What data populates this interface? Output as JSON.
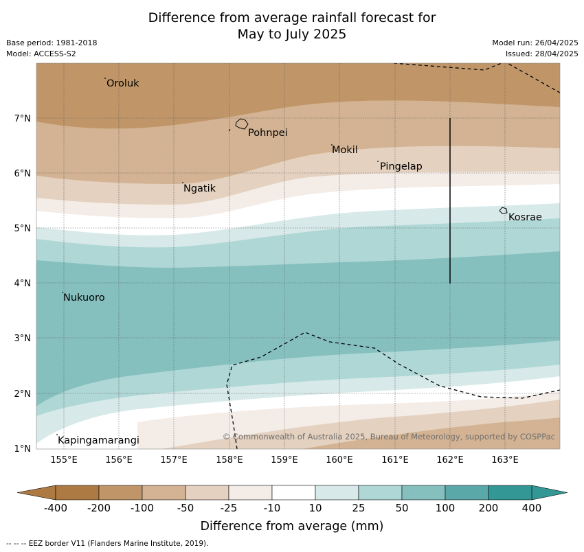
{
  "title": {
    "line1": "Difference from average rainfall forecast for",
    "line2": "May to July 2025"
  },
  "meta": {
    "base_period": "Base period: 1981-2018",
    "model": "Model: ACCESS-S2",
    "model_run": "Model run: 26/04/2025",
    "issued": "Issued: 28/04/2025"
  },
  "map": {
    "lat_ticks": [
      "7°N",
      "6°N",
      "5°N",
      "4°N",
      "3°N",
      "2°N",
      "1°N"
    ],
    "lon_ticks": [
      "155°E",
      "156°E",
      "157°E",
      "158°E",
      "159°E",
      "160°E",
      "161°E",
      "162°E",
      "163°E"
    ],
    "places": [
      "Oroluk",
      "Pohnpei",
      "Mokil",
      "Pingelap",
      "Ngatik",
      "Kosrae",
      "Nukuoro",
      "Kapingamarangi"
    ],
    "copyright": "© Commonwealth of Australia 2025, Bureau of Meteorology, supported by COSPPac"
  },
  "colorbar": {
    "ticks": [
      "-400",
      "-200",
      "-100",
      "-50",
      "-25",
      "-10",
      "10",
      "25",
      "50",
      "100",
      "200",
      "400"
    ],
    "colors": [
      "#ad7a43",
      "#c09669",
      "#d3b393",
      "#e4d1bf",
      "#f4ece7",
      "#ffffff",
      "#d7e9e8",
      "#afd7d6",
      "#85c0bf",
      "#5aa8a7",
      "#339895"
    ],
    "label": "Difference from average (mm)"
  },
  "footer": {
    "legend": "--  --  -- EEZ border V11 (Flanders Marine Institute, 2019)."
  }
}
